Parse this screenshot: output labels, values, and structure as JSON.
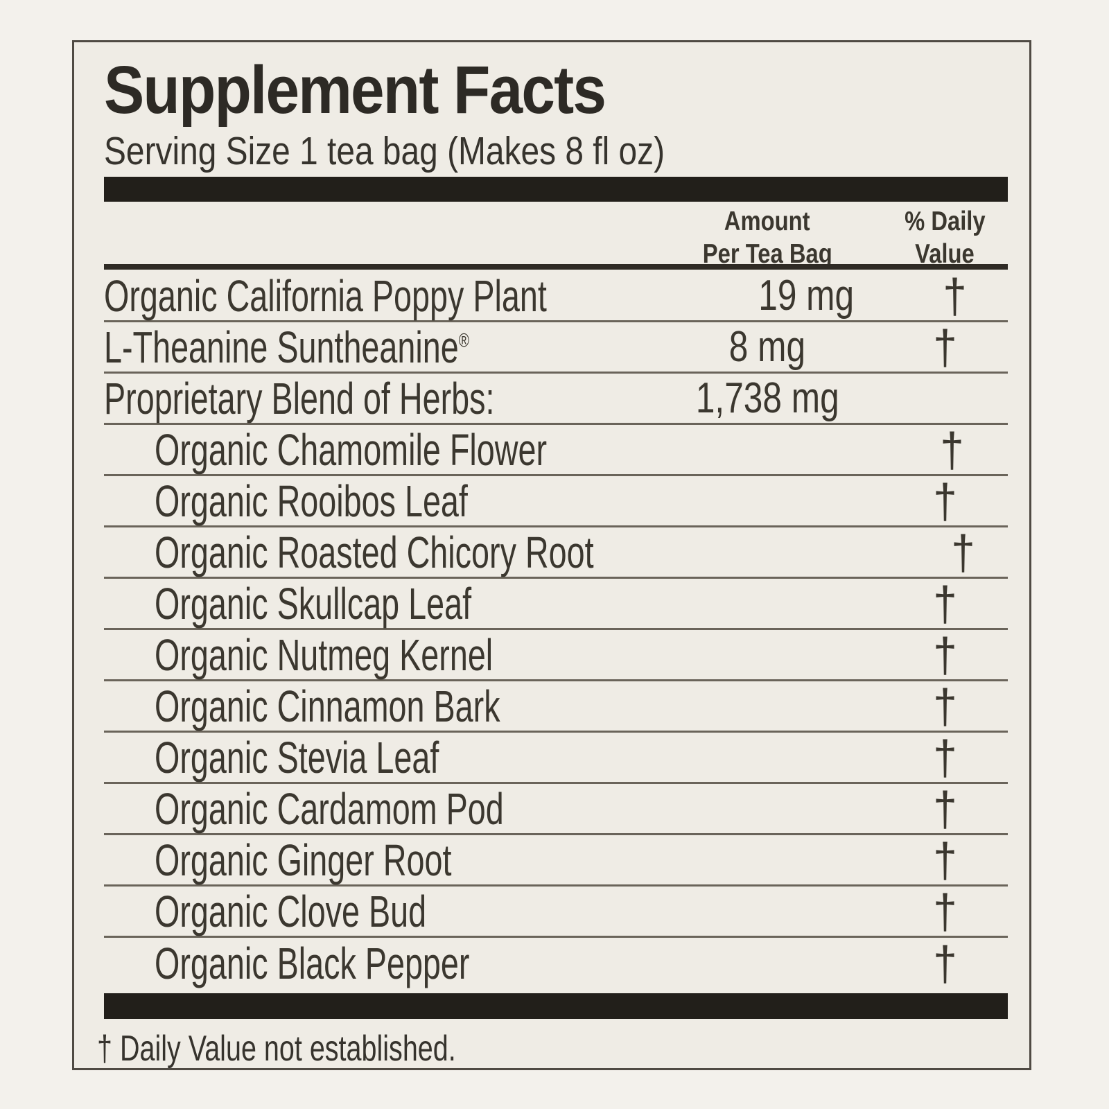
{
  "panel": {
    "title": "Supplement Facts",
    "serving_size": "Serving Size 1 tea bag (Makes 8 fl oz)",
    "columns": {
      "amount": [
        "Amount",
        "Per Tea Bag"
      ],
      "daily_value": [
        "% Daily",
        "Value"
      ]
    },
    "rows": [
      {
        "name": "Organic California Poppy Plant",
        "amount": "19 mg",
        "daily_value": "†",
        "indent": false
      },
      {
        "name": "L-Theanine Suntheanine",
        "name_sup": "®",
        "amount": "8 mg",
        "daily_value": "†",
        "indent": false
      },
      {
        "name": "Proprietary Blend of Herbs:",
        "amount": "1,738 mg",
        "daily_value": "",
        "indent": false
      },
      {
        "name": "Organic Chamomile Flower",
        "amount": "",
        "daily_value": "†",
        "indent": true
      },
      {
        "name": "Organic Rooibos Leaf",
        "amount": "",
        "daily_value": "†",
        "indent": true
      },
      {
        "name": "Organic Roasted Chicory Root",
        "amount": "",
        "daily_value": "†",
        "indent": true
      },
      {
        "name": "Organic Skullcap Leaf",
        "amount": "",
        "daily_value": "†",
        "indent": true
      },
      {
        "name": "Organic Nutmeg Kernel",
        "amount": "",
        "daily_value": "†",
        "indent": true
      },
      {
        "name": "Organic Cinnamon Bark",
        "amount": "",
        "daily_value": "†",
        "indent": true
      },
      {
        "name": "Organic Stevia Leaf",
        "amount": "",
        "daily_value": "†",
        "indent": true
      },
      {
        "name": "Organic Cardamom Pod",
        "amount": "",
        "daily_value": "†",
        "indent": true
      },
      {
        "name": "Organic Ginger Root",
        "amount": "",
        "daily_value": "†",
        "indent": true
      },
      {
        "name": "Organic Clove Bud",
        "amount": "",
        "daily_value": "†",
        "indent": true
      },
      {
        "name": "Organic Black Pepper",
        "amount": "",
        "daily_value": "†",
        "indent": true
      }
    ],
    "footnote": "† Daily Value not established.",
    "colors": {
      "page_bg": "#f3f1ec",
      "panel_bg": "#efece5",
      "text": "#3b372f",
      "heavy_bar": "#221f1a",
      "rule": "#6a645a",
      "header_rule": "#2f2b25",
      "border": "#4f4a43"
    }
  }
}
